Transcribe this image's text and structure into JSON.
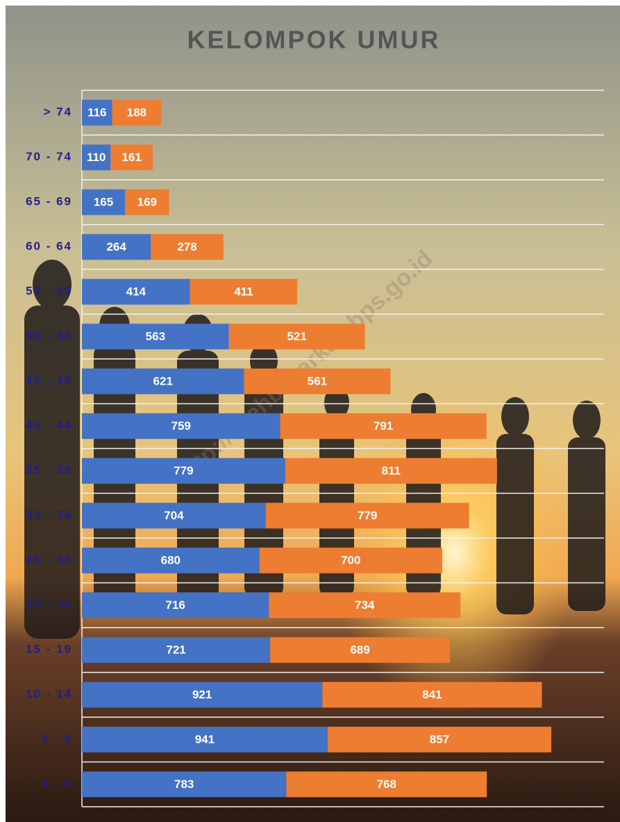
{
  "chart_data": {
    "type": "stacked-bar-horizontal",
    "title": "KELOMPOK UMUR",
    "watermark": "http://acehbesarkab.bps.go.id",
    "categories": [
      "> 74",
      "70 - 74",
      "65 - 69",
      "60 - 64",
      "55 - 59",
      "50 - 54",
      "45 - 49",
      "40 - 44",
      "35 - 39",
      "30 - 34",
      "25 - 29",
      "20 - 24",
      "15 - 19",
      "10 - 14",
      "5 - 9",
      "0 - 4"
    ],
    "series": [
      {
        "color": "#4472c4",
        "values": [
          116,
          110,
          165,
          264,
          414,
          563,
          621,
          759,
          779,
          704,
          680,
          716,
          721,
          921,
          941,
          783
        ]
      },
      {
        "color": "#ed7d31",
        "values": [
          188,
          161,
          169,
          278,
          411,
          521,
          561,
          791,
          811,
          779,
          700,
          734,
          689,
          841,
          857,
          768
        ]
      }
    ],
    "xlim": [
      0,
      2000
    ]
  }
}
